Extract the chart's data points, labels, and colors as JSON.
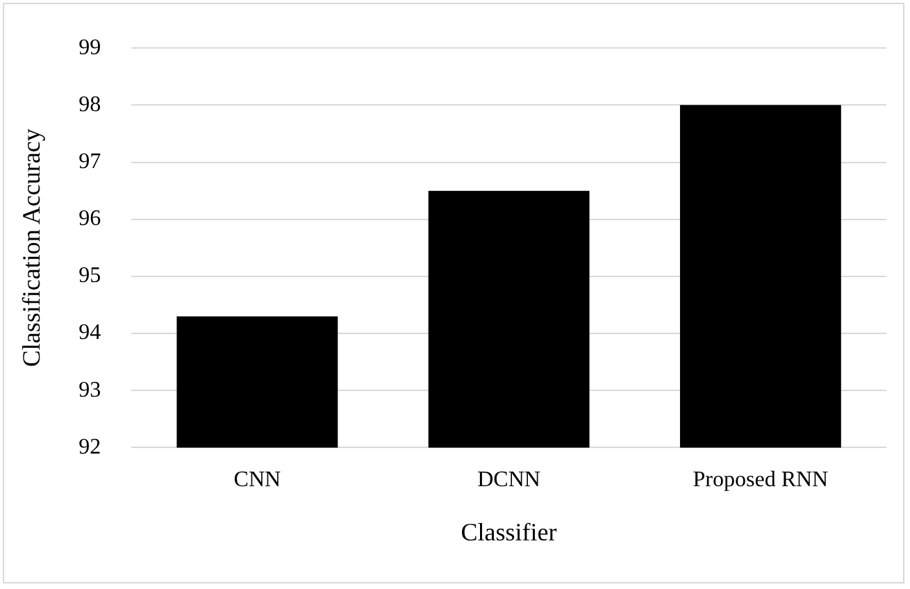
{
  "chart_data": {
    "type": "bar",
    "xlabel": "Classifier",
    "ylabel": "Classification Accuracy",
    "categories": [
      "CNN",
      "DCNN",
      "Proposed RNN"
    ],
    "values": [
      94.3,
      96.5,
      98.0
    ],
    "color": "#000000",
    "ylim": [
      92,
      99
    ],
    "yticks": [
      92,
      93,
      94,
      95,
      96,
      97,
      98,
      99
    ],
    "grid": "y",
    "legend": false
  }
}
